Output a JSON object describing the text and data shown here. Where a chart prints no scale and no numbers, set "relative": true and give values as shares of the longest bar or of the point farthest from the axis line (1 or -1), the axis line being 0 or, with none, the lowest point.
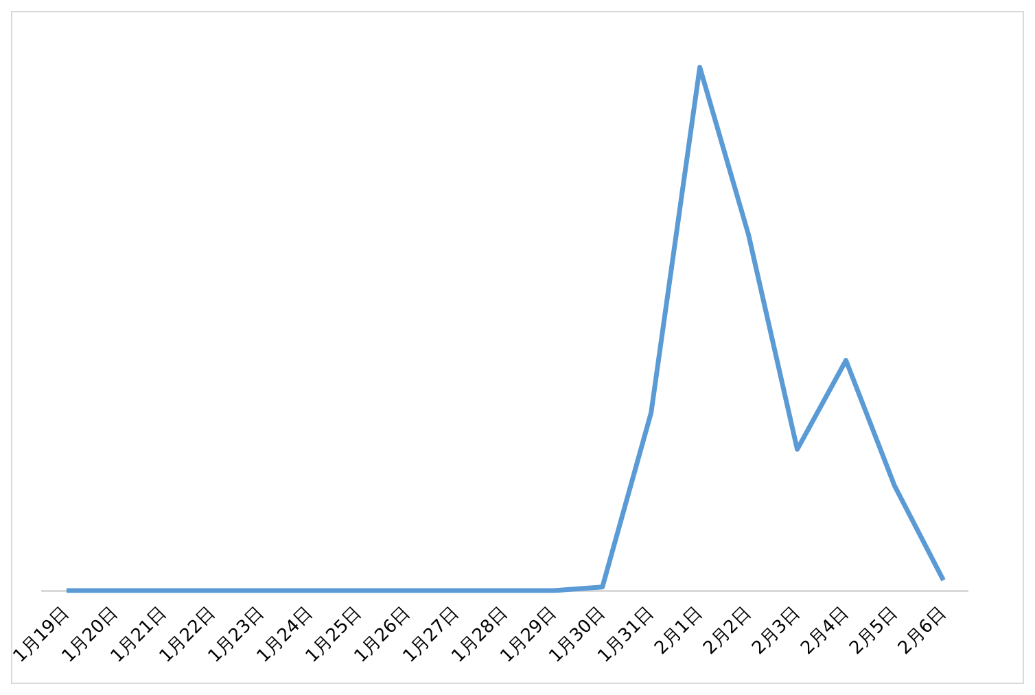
{
  "chart_data": {
    "type": "line",
    "relative": true,
    "categories": [
      "1月19日",
      "1月20日",
      "1月21日",
      "1月22日",
      "1月23日",
      "1月24日",
      "1月25日",
      "1月26日",
      "1月27日",
      "1月28日",
      "1月29日",
      "1月30日",
      "1月31日",
      "2月1日",
      "2月2日",
      "2月3日",
      "2月4日",
      "2月5日",
      "2月6日"
    ],
    "series": [
      {
        "color": "#5b9bd5",
        "values": [
          0,
          0,
          0,
          0,
          0,
          0,
          0,
          0,
          0,
          0,
          0,
          0.007,
          0.34,
          1,
          0.68,
          0.27,
          0.44,
          0.2,
          0.02
        ]
      }
    ],
    "grid": false,
    "legend": false,
    "marker": "none",
    "line_style": "solid"
  }
}
